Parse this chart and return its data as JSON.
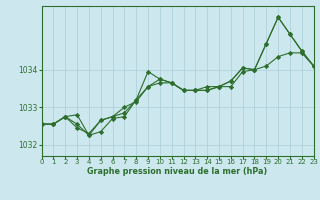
{
  "xlabel": "Graphe pression niveau de la mer (hPa)",
  "ylabel": "",
  "bg_color": "#cce8ee",
  "grid_color": "#aacdd6",
  "line_color": "#2d6e2d",
  "marker_color": "#2d6e2d",
  "xmin": 0,
  "xmax": 23,
  "ymin": 1031.7,
  "ymax": 1035.7,
  "yticks": [
    1032,
    1033,
    1034
  ],
  "xticks": [
    0,
    1,
    2,
    3,
    4,
    5,
    6,
    7,
    8,
    9,
    10,
    11,
    12,
    13,
    14,
    15,
    16,
    17,
    18,
    19,
    20,
    21,
    22,
    23
  ],
  "series1_x": [
    0,
    1,
    2,
    3,
    4,
    5,
    6,
    7,
    8,
    9,
    10,
    11,
    12,
    13,
    14,
    15,
    16,
    17,
    18,
    19,
    20,
    21,
    22,
    23
  ],
  "series1_y": [
    1032.55,
    1032.55,
    1032.75,
    1032.45,
    1032.3,
    1032.65,
    1032.75,
    1033.0,
    1033.15,
    1033.55,
    1033.65,
    1033.65,
    1033.45,
    1033.45,
    1033.55,
    1033.55,
    1033.55,
    1033.95,
    1034.0,
    1034.1,
    1034.35,
    1034.45,
    1034.45,
    1034.1
  ],
  "series2_x": [
    0,
    1,
    2,
    3,
    4,
    5,
    6,
    7,
    8,
    9,
    10,
    11,
    12,
    13,
    14,
    15,
    16,
    17,
    18,
    19,
    20,
    21,
    22,
    23
  ],
  "series2_y": [
    1032.55,
    1032.55,
    1032.75,
    1032.55,
    1032.25,
    1032.65,
    1032.75,
    1032.85,
    1033.2,
    1033.95,
    1033.75,
    1033.65,
    1033.45,
    1033.45,
    1033.45,
    1033.55,
    1033.7,
    1034.05,
    1034.0,
    1034.7,
    1035.4,
    1034.95,
    1034.5,
    1034.1
  ],
  "series3_x": [
    0,
    1,
    2,
    3,
    4,
    5,
    6,
    7,
    8,
    9,
    10,
    11,
    12,
    13,
    14,
    15,
    16,
    17,
    18,
    19,
    20,
    21,
    22,
    23
  ],
  "series3_y": [
    1032.55,
    1032.55,
    1032.75,
    1032.8,
    1032.25,
    1032.35,
    1032.7,
    1032.75,
    1033.2,
    1033.55,
    1033.75,
    1033.65,
    1033.45,
    1033.45,
    1033.45,
    1033.55,
    1033.7,
    1034.05,
    1034.0,
    1034.7,
    1035.4,
    1034.95,
    1034.5,
    1034.1
  ]
}
